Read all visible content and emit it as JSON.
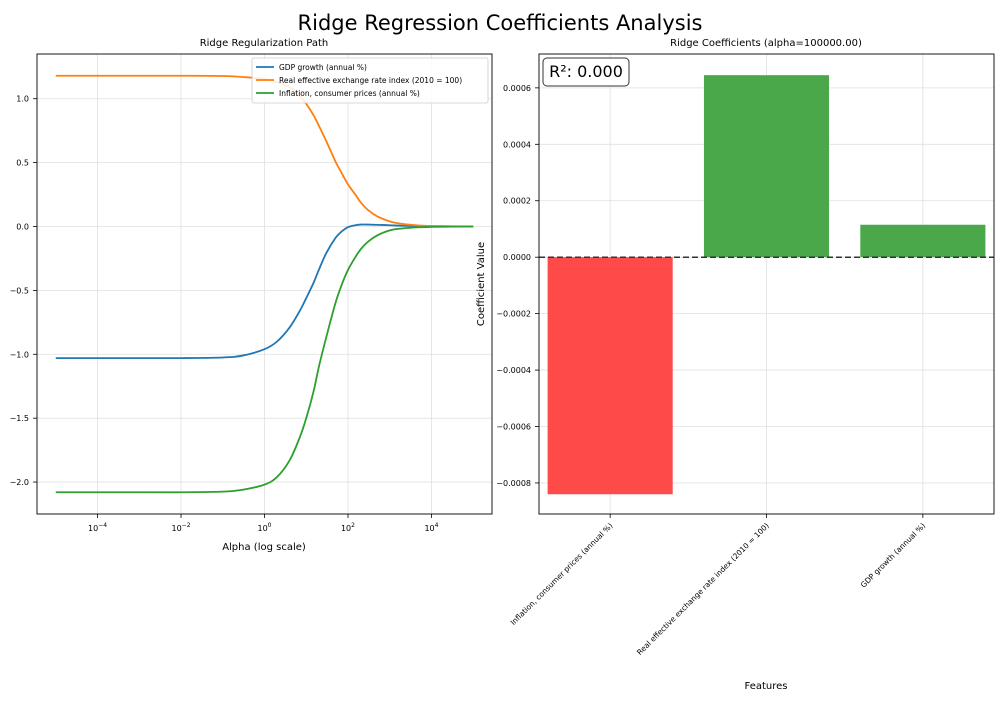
{
  "figure": {
    "title": "Ridge Regression Coefficients Analysis"
  },
  "chart_data": [
    {
      "type": "line",
      "title": "Ridge Regularization Path",
      "xlabel": "Alpha (log scale)",
      "ylabel": "",
      "xscale": "log",
      "xlim": [
        1e-05,
        100000
      ],
      "ylim": [
        -2.25,
        1.35
      ],
      "xticks": [
        0.0001,
        0.01,
        1,
        100,
        10000
      ],
      "xtick_labels": [
        {
          "base": "10",
          "exp": "−4"
        },
        {
          "base": "10",
          "exp": "−2"
        },
        {
          "base": "10",
          "exp": "0"
        },
        {
          "base": "10",
          "exp": "2"
        },
        {
          "base": "10",
          "exp": "4"
        }
      ],
      "yticks": [
        1.0,
        0.5,
        0.0,
        -0.5,
        -1.0,
        -1.5,
        -2.0
      ],
      "ytick_labels": [
        "1.0",
        "0.5",
        "0.0",
        "−0.5",
        "−1.0",
        "−1.5",
        "−2.0"
      ],
      "grid": true,
      "legend_position": "top-right",
      "series": [
        {
          "name": "GDP growth (annual %)",
          "color": "#1f77b4",
          "x": [
            1e-05,
            0.0001,
            0.001,
            0.01,
            0.1,
            0.3,
            1,
            2,
            4,
            7,
            10,
            15,
            20,
            30,
            50,
            70,
            100,
            150,
            200,
            300,
            500,
            1000,
            2000,
            5000,
            10000,
            30000,
            100000
          ],
          "y": [
            -1.03,
            -1.03,
            -1.03,
            -1.03,
            -1.025,
            -1.01,
            -0.96,
            -0.9,
            -0.79,
            -0.66,
            -0.56,
            -0.44,
            -0.34,
            -0.21,
            -0.09,
            -0.04,
            -0.005,
            0.01,
            0.015,
            0.015,
            0.013,
            0.01,
            0.006,
            0.003,
            0.002,
            0.001,
            0.0
          ]
        },
        {
          "name": "Real effective exchange rate index (2010 = 100)",
          "color": "#ff7f0e",
          "x": [
            1e-05,
            0.0001,
            0.001,
            0.01,
            0.1,
            0.3,
            1,
            2,
            4,
            7,
            10,
            15,
            20,
            30,
            50,
            70,
            100,
            150,
            200,
            300,
            500,
            1000,
            2000,
            5000,
            10000,
            30000,
            100000
          ],
          "y": [
            1.18,
            1.18,
            1.18,
            1.18,
            1.178,
            1.17,
            1.155,
            1.13,
            1.09,
            1.02,
            0.96,
            0.87,
            0.79,
            0.67,
            0.51,
            0.42,
            0.33,
            0.25,
            0.19,
            0.13,
            0.08,
            0.04,
            0.02,
            0.008,
            0.004,
            0.002,
            0.0
          ]
        },
        {
          "name": "Inflation, consumer prices (annual %)",
          "color": "#2ca02c",
          "x": [
            1e-05,
            0.0001,
            0.001,
            0.01,
            0.1,
            0.3,
            1,
            2,
            4,
            7,
            10,
            15,
            20,
            30,
            50,
            70,
            100,
            150,
            200,
            300,
            500,
            1000,
            2000,
            5000,
            10000,
            30000,
            100000
          ],
          "y": [
            -2.08,
            -2.08,
            -2.08,
            -2.08,
            -2.075,
            -2.06,
            -2.02,
            -1.96,
            -1.83,
            -1.65,
            -1.5,
            -1.29,
            -1.1,
            -0.87,
            -0.6,
            -0.46,
            -0.34,
            -0.24,
            -0.18,
            -0.12,
            -0.07,
            -0.03,
            -0.015,
            -0.006,
            -0.003,
            -0.001,
            0.0
          ]
        }
      ]
    },
    {
      "type": "bar",
      "title": "Ridge Coefficients (alpha=100000.00)",
      "xlabel": "Features",
      "ylabel": "Coefficient Value",
      "ylim": [
        -0.00091,
        0.00072
      ],
      "yticks": [
        0.0006,
        0.0004,
        0.0002,
        0.0,
        -0.0002,
        -0.0004,
        -0.0006,
        -0.0008
      ],
      "ytick_labels": [
        "0.0006",
        "0.0004",
        "0.0002",
        "0.0000",
        "−0.0002",
        "−0.0004",
        "−0.0006",
        "−0.0008"
      ],
      "grid": true,
      "reference_line": 0,
      "annotation": "R²: 0.000",
      "categories": [
        "Inflation, consumer prices (annual %)",
        "Real effective exchange rate index (2010 = 100)",
        "GDP growth (annual %)"
      ],
      "values": [
        -0.00084,
        0.000645,
        0.000115
      ],
      "colors": [
        "#ff4a4a",
        "#4aa84a",
        "#4aa84a"
      ]
    }
  ]
}
